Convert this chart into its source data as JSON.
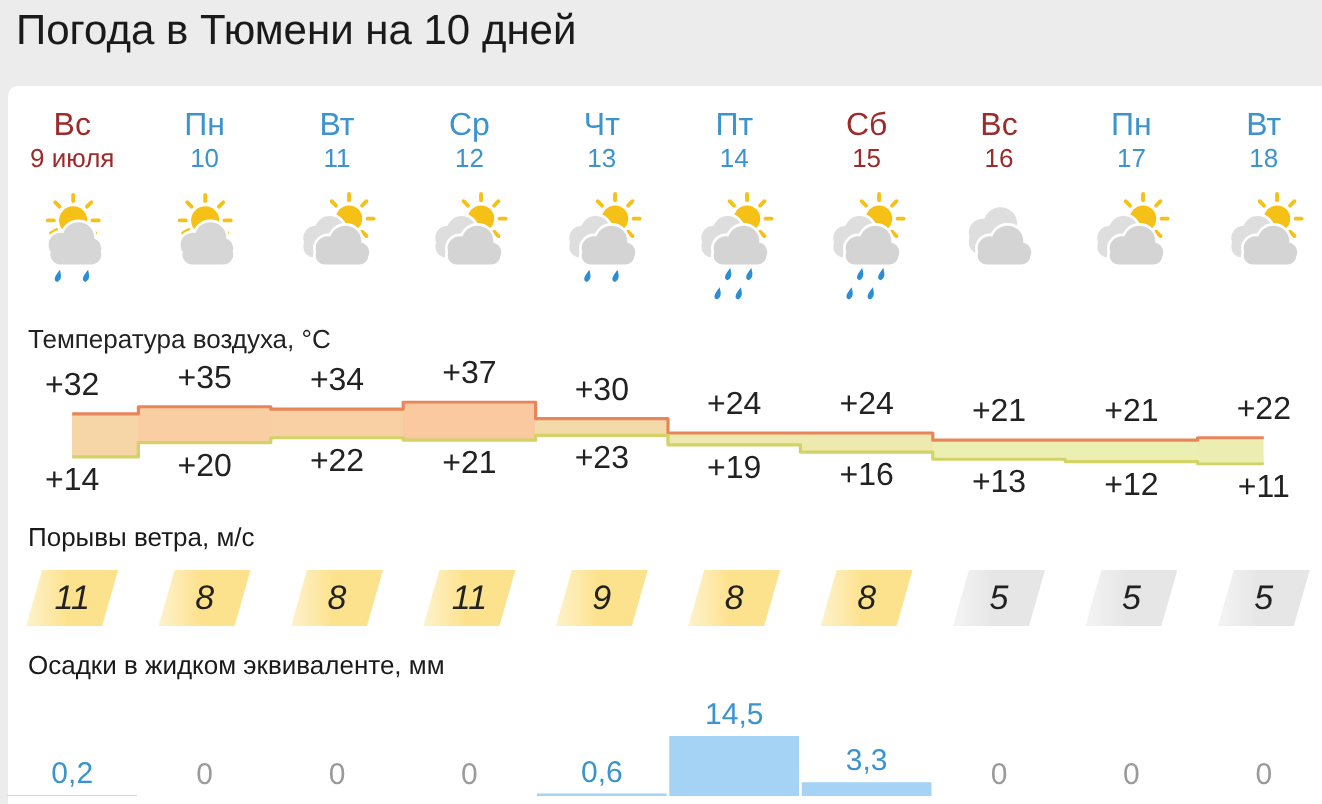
{
  "chart_data": [
    {
      "type": "step",
      "title": "Погода в Тюмени на 10 дней",
      "subtitle": "Температура воздуха, °C",
      "categories": [
        "Вс\n9 июля",
        "Пн\n10",
        "Вт\n11",
        "Ср\n12",
        "Чт\n13",
        "Пт\n14",
        "Сб\n15",
        "Вс\n16",
        "Пн\n17",
        "Вт\n18"
      ],
      "series": [
        {
          "values": [
            32,
            35,
            34,
            37,
            30,
            24,
            24,
            21,
            21,
            22
          ],
          "value_labels": [
            "+32",
            "+35",
            "+34",
            "+37",
            "+30",
            "+24",
            "+24",
            "+21",
            "+21",
            "+22"
          ],
          "color": "#e8855a",
          "lower": [
            14,
            20,
            22,
            21,
            23,
            19,
            16,
            13,
            12,
            11
          ],
          "upper": [
            32,
            35,
            34,
            37,
            30,
            24,
            24,
            21,
            21,
            22
          ]
        },
        {
          "values": [
            14,
            20,
            22,
            21,
            23,
            19,
            16,
            13,
            12,
            11
          ],
          "value_labels": [
            "+14",
            "+20",
            "+22",
            "+21",
            "+23",
            "+19",
            "+16",
            "+13",
            "+12",
            "+11"
          ],
          "color": "#d2d266"
        }
      ],
      "marker": "none",
      "tick_labels": "x"
    },
    {
      "type": "other",
      "title": "Порывы ветра, м/с",
      "values": [
        11,
        8,
        8,
        11,
        9,
        8,
        8,
        5,
        5,
        5
      ],
      "colors": [
        "#fde28e",
        "#fde28e",
        "#fde28e",
        "#fde28e",
        "#fde28e",
        "#fde28e",
        "#fde28e",
        "#e6e6e6",
        "#e6e6e6",
        "#e6e6e6"
      ],
      "data_labels": true
    },
    {
      "type": "bar",
      "title": "Осадки в жидком эквиваленте, мм",
      "categories": [
        null,
        null,
        null,
        null,
        null,
        null,
        null,
        null,
        null,
        null
      ],
      "values": [
        0.2,
        0,
        0,
        0,
        0.6,
        14.5,
        3.3,
        0,
        0,
        0
      ],
      "value_labels": [
        "0,2",
        "0",
        "0",
        "0",
        "0,6",
        "14,5",
        "3,3",
        "0",
        "0",
        "0"
      ],
      "color": "#a5d3f6"
    }
  ]
}
